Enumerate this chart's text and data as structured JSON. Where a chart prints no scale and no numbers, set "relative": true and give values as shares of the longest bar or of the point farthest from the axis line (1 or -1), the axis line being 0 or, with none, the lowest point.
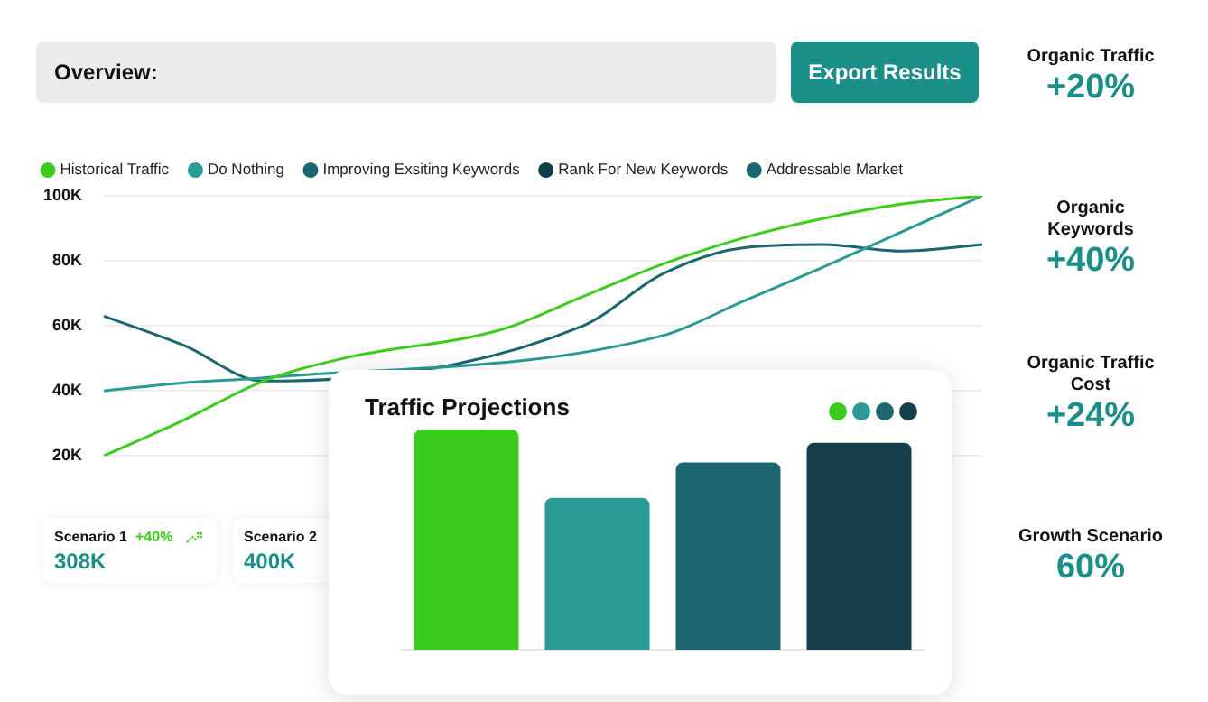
{
  "chart_data": [
    {
      "type": "line",
      "categories": [
        null,
        null,
        null,
        null,
        null,
        null,
        null,
        null,
        null,
        null,
        null,
        null
      ],
      "series": [
        {
          "name": "Historical Traffic",
          "color": "#3ccc1c",
          "values": [
            20,
            31,
            43,
            50,
            null,
            59,
            69,
            79,
            87,
            93,
            97.5,
            100
          ]
        },
        {
          "name": "Do Nothing",
          "color": "#2a9a94",
          "values": [
            40,
            42.5,
            44,
            null,
            null,
            null,
            null,
            57,
            67.5,
            78,
            89,
            100
          ]
        },
        {
          "name": "Improving Exsiting Keywords",
          "color": "#1b6670",
          "values": [
            63,
            54,
            43,
            null,
            null,
            null,
            60,
            76,
            84,
            85,
            83,
            85
          ]
        },
        {
          "name": "Rank For New Keywords",
          "color": "#0e3f48",
          "values": [
            null,
            null,
            null,
            null,
            null,
            null,
            null,
            null,
            null,
            null,
            null,
            null
          ]
        },
        {
          "name": "Addressable Market",
          "color": "#1a6670",
          "values": [
            null,
            null,
            null,
            null,
            null,
            null,
            null,
            null,
            null,
            null,
            null,
            null
          ]
        }
      ],
      "ylim": [
        20,
        100
      ],
      "yticks": [
        {
          "value": 20,
          "label": "20K"
        },
        {
          "value": 40,
          "label": "40K"
        },
        {
          "value": 60,
          "label": "60K"
        },
        {
          "value": 80,
          "label": "80K"
        },
        {
          "value": 100,
          "label": "100K"
        }
      ],
      "grid": "y",
      "legend": "top left",
      "marker": "none",
      "tick_labels": "y"
    },
    {
      "type": "bar",
      "title": "Traffic Projections",
      "categories": [
        null,
        null,
        null,
        null
      ],
      "relative": true,
      "values": [
        1,
        0.69,
        0.85,
        0.94
      ],
      "colors": [
        "#3ccc1c",
        "#2a9a94",
        "#1b6670",
        "#153f48"
      ],
      "tick_labels": false
    },
    {
      "type": "other",
      "annotations": [
        "Overview:",
        "Export Results",
        "Scenario 1",
        "+40%",
        "308K",
        "Scenario 2",
        "400K",
        "Organic Traffic",
        "+20%",
        "Organic Keywords",
        "+40%",
        "Organic Traffic Cost",
        "+24%",
        "Growth Scenario",
        "60%"
      ]
    }
  ]
}
